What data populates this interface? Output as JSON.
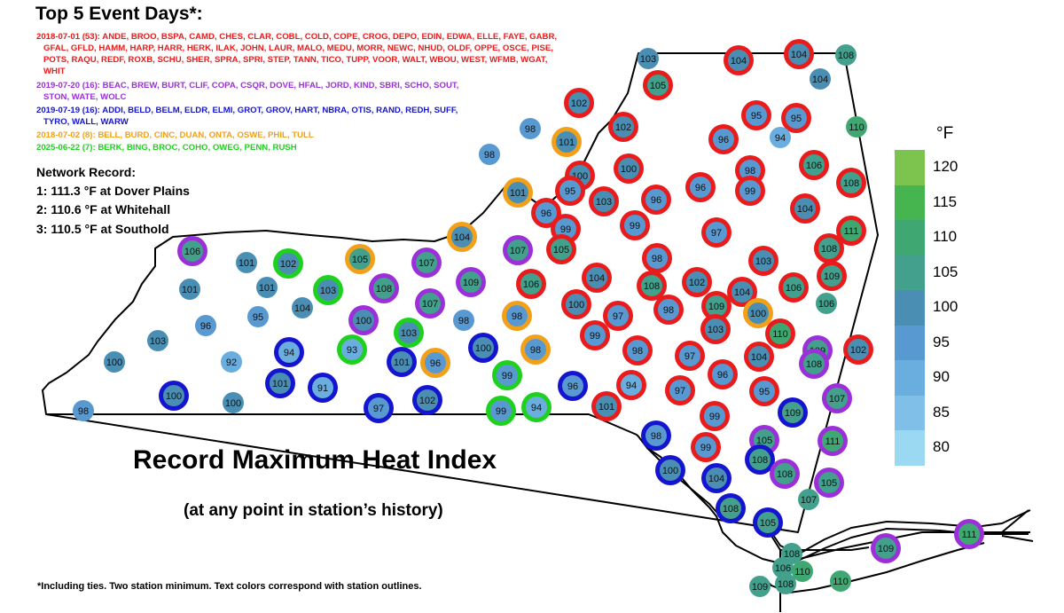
{
  "title": "Top 5 Event Days*:",
  "events": [
    {
      "color": "#e81c1c",
      "lines": [
        "2018-07-01 (53): ANDE, BROO, BSPA, CAMD, CHES, CLAR, COBL, COLD, COPE, CROG, DEPO, EDIN, EDWA, ELLE, FAYE, GABR,",
        "GFAL, GFLD, HAMM, HARP, HARR, HERK, ILAK, JOHN, LAUR, MALO, MEDU, MORR, NEWC, NHUD, OLDF, OPPE, OSCE, PISE,",
        "POTS, RAQU, REDF, ROXB, SCHU, SHER, SPRA, SPRI, STEP, TANN, TICO, TUPP, VOOR, WALT, WBOU, WEST, WFMB, WGAT,",
        "WHIT"
      ]
    },
    {
      "color": "#9b30d9",
      "lines": [
        "2019-07-20 (16): BEAC, BREW, BURT, CLIF, COPA, CSQR, DOVE, HFAL, JORD, KIND, SBRI, SCHO, SOUT,",
        "STON, WATE, WOLC"
      ]
    },
    {
      "color": "#1515cf",
      "lines": [
        "2019-07-19 (16): ADDI, BELD, BELM, ELDR, ELMI, GROT, GROV, HART, NBRA, OTIS, RAND, REDH, SUFF,",
        "TYRO, WALL, WARW"
      ]
    },
    {
      "color": "#f2a01a",
      "lines": [
        "2018-07-02 (8): BELL, BURD, CINC, DUAN, ONTA, OSWE, PHIL, TULL"
      ]
    },
    {
      "color": "#1fd11f",
      "lines": [
        "2025-06-22 (7): BERK, BING, BROC, COHO, OWEG, PENN, RUSH"
      ]
    }
  ],
  "network_record": {
    "title": "Network Record:",
    "records": [
      "1: 111.3 °F at Dover Plains",
      "2: 110.6 °F at Whitehall",
      "3: 110.5 °F at Southold"
    ]
  },
  "main_title": "Record Maximum Heat Index",
  "subtitle": "(at any point in station’s history)",
  "footnote": "*Including ties. Two station minimum. Text colors correspond with station outlines.",
  "colorbar": {
    "unit": "°F",
    "labels": [
      "120",
      "115",
      "110",
      "105",
      "100",
      "95",
      "90",
      "85",
      "80"
    ],
    "bins": [
      {
        "min": 80,
        "max": 85,
        "color": "#9bd8f2"
      },
      {
        "min": 85,
        "max": 90,
        "color": "#80bfe8"
      },
      {
        "min": 90,
        "max": 95,
        "color": "#6aaddf"
      },
      {
        "min": 95,
        "max": 100,
        "color": "#5999d2"
      },
      {
        "min": 100,
        "max": 105,
        "color": "#4a8fb3"
      },
      {
        "min": 105,
        "max": 110,
        "color": "#42a08c"
      },
      {
        "min": 110,
        "max": 115,
        "color": "#3fa872"
      },
      {
        "min": 115,
        "max": 120,
        "color": "#47b54f"
      },
      {
        "min": 120,
        "max": 125,
        "color": "#7dc44f"
      }
    ]
  },
  "outline_colors": {
    "red": "#e81c1c",
    "purple": "#9b30d9",
    "blue": "#1515cf",
    "orange": "#f2a01a",
    "green": "#1fd11f"
  },
  "stations": [
    {
      "v": 103,
      "o": null
    },
    {
      "v": 104,
      "o": "red"
    },
    {
      "v": 104,
      "o": "red"
    },
    {
      "v": 108,
      "o": null
    },
    {
      "v": 104,
      "o": null
    },
    {
      "v": 105,
      "o": "red"
    },
    {
      "v": 102,
      "o": "red"
    },
    {
      "v": 95,
      "o": "red"
    },
    {
      "v": 95,
      "o": "red"
    },
    {
      "v": 110,
      "o": null
    },
    {
      "v": 98,
      "o": null
    },
    {
      "v": 102,
      "o": "red"
    },
    {
      "v": 96,
      "o": "red"
    },
    {
      "v": 94,
      "o": null
    },
    {
      "v": 101,
      "o": "orange"
    },
    {
      "v": 98,
      "o": null
    },
    {
      "v": 106,
      "o": "red"
    },
    {
      "v": 100,
      "o": "red"
    },
    {
      "v": 100,
      "o": "red"
    },
    {
      "v": 98,
      "o": "red"
    },
    {
      "v": 108,
      "o": "red"
    },
    {
      "v": 95,
      "o": "red"
    },
    {
      "v": 101,
      "o": "orange"
    },
    {
      "v": 103,
      "o": "red"
    },
    {
      "v": 96,
      "o": "red"
    },
    {
      "v": 96,
      "o": "red"
    },
    {
      "v": 99,
      "o": "red"
    },
    {
      "v": 104,
      "o": "red"
    },
    {
      "v": 96,
      "o": "red"
    },
    {
      "v": 99,
      "o": "red"
    },
    {
      "v": 99,
      "o": "red"
    },
    {
      "v": 97,
      "o": "red"
    },
    {
      "v": 111,
      "o": "red"
    },
    {
      "v": 104,
      "o": "orange"
    },
    {
      "v": 105,
      "o": "red"
    },
    {
      "v": 107,
      "o": "purple"
    },
    {
      "v": 108,
      "o": "red"
    },
    {
      "v": 106,
      "o": "purple"
    },
    {
      "v": 101,
      "o": null
    },
    {
      "v": 102,
      "o": "green"
    },
    {
      "v": 105,
      "o": "orange"
    },
    {
      "v": 107,
      "o": "purple"
    },
    {
      "v": 98,
      "o": "red"
    },
    {
      "v": 103,
      "o": "red"
    },
    {
      "v": 109,
      "o": "red"
    },
    {
      "v": 101,
      "o": null
    },
    {
      "v": 101,
      "o": null
    },
    {
      "v": 103,
      "o": "green"
    },
    {
      "v": 108,
      "o": "purple"
    },
    {
      "v": 109,
      "o": "purple"
    },
    {
      "v": 106,
      "o": "red"
    },
    {
      "v": 104,
      "o": "red"
    },
    {
      "v": 108,
      "o": "red"
    },
    {
      "v": 102,
      "o": "red"
    },
    {
      "v": 104,
      "o": "red"
    },
    {
      "v": 106,
      "o": "red"
    },
    {
      "v": 104,
      "o": null
    },
    {
      "v": 107,
      "o": "purple"
    },
    {
      "v": 100,
      "o": "red"
    },
    {
      "v": 97,
      "o": "red"
    },
    {
      "v": 98,
      "o": "red"
    },
    {
      "v": 109,
      "o": "red"
    },
    {
      "v": 100,
      "o": "orange"
    },
    {
      "v": 106,
      "o": null
    },
    {
      "v": 96,
      "o": null
    },
    {
      "v": 95,
      "o": null
    },
    {
      "v": 100,
      "o": "purple"
    },
    {
      "v": 98,
      "o": null
    },
    {
      "v": 98,
      "o": "orange"
    },
    {
      "v": 103,
      "o": "green"
    },
    {
      "v": 99,
      "o": "red"
    },
    {
      "v": 103,
      "o": "red"
    },
    {
      "v": 110,
      "o": "red"
    },
    {
      "v": 103,
      "o": null
    },
    {
      "v": 94,
      "o": "blue"
    },
    {
      "v": 93,
      "o": "green"
    },
    {
      "v": 100,
      "o": "blue"
    },
    {
      "v": 98,
      "o": "orange"
    },
    {
      "v": 98,
      "o": "red"
    },
    {
      "v": 97,
      "o": "red"
    },
    {
      "v": 104,
      "o": "red"
    },
    {
      "v": 109,
      "o": "purple"
    },
    {
      "v": 102,
      "o": "red"
    },
    {
      "v": 100,
      "o": null
    },
    {
      "v": 92,
      "o": null
    },
    {
      "v": 101,
      "o": "blue"
    },
    {
      "v": 96,
      "o": "orange"
    },
    {
      "v": 99,
      "o": "green"
    },
    {
      "v": 96,
      "o": "red"
    },
    {
      "v": 108,
      "o": "purple"
    },
    {
      "v": 101,
      "o": "blue"
    },
    {
      "v": 91,
      "o": "blue"
    },
    {
      "v": 96,
      "o": "blue"
    },
    {
      "v": 94,
      "o": "red"
    },
    {
      "v": 97,
      "o": "red"
    },
    {
      "v": 95,
      "o": "red"
    },
    {
      "v": 107,
      "o": "purple"
    },
    {
      "v": 100,
      "o": "blue"
    },
    {
      "v": 100,
      "o": null
    },
    {
      "v": 97,
      "o": "blue"
    },
    {
      "v": 102,
      "o": "blue"
    },
    {
      "v": 99,
      "o": "green"
    },
    {
      "v": 94,
      "o": "green"
    },
    {
      "v": 101,
      "o": "red"
    },
    {
      "v": 99,
      "o": "red"
    },
    {
      "v": 109,
      "o": "blue"
    },
    {
      "v": 98,
      "o": null
    },
    {
      "v": 98,
      "o": "blue"
    },
    {
      "v": 105,
      "o": "purple"
    },
    {
      "v": 111,
      "o": "purple"
    },
    {
      "v": 99,
      "o": "red"
    },
    {
      "v": 108,
      "o": "blue"
    },
    {
      "v": 100,
      "o": "blue"
    },
    {
      "v": 104,
      "o": "blue"
    },
    {
      "v": 108,
      "o": "purple"
    },
    {
      "v": 105,
      "o": "purple"
    },
    {
      "v": 107,
      "o": null
    },
    {
      "v": 108,
      "o": "blue"
    },
    {
      "v": 105,
      "o": "blue"
    },
    {
      "v": 111,
      "o": "purple"
    },
    {
      "v": 109,
      "o": "purple"
    },
    {
      "v": 108,
      "o": null
    },
    {
      "v": 106,
      "o": null
    },
    {
      "v": 110,
      "o": null
    },
    {
      "v": 108,
      "o": null
    },
    {
      "v": 109,
      "o": null
    },
    {
      "v": 110,
      "o": null
    }
  ]
}
